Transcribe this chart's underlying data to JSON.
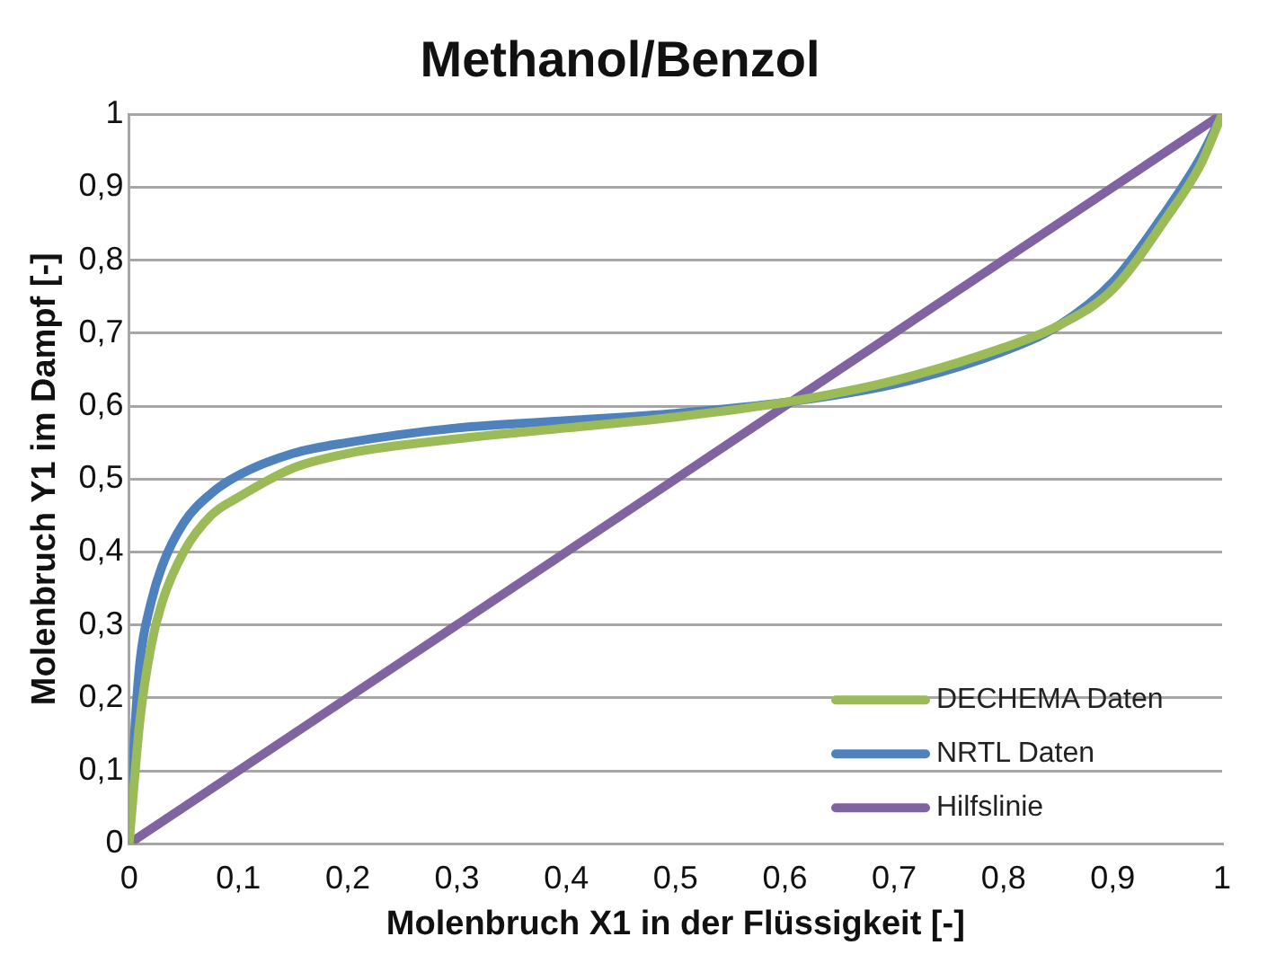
{
  "chart_data": {
    "type": "line",
    "title": "Methanol/Benzol",
    "xlabel": "Molenbruch X1 in der Flüssigkeit [-]",
    "ylabel": "Molenbruch Y1 im Dampf [-]",
    "xlim": [
      0,
      1
    ],
    "xticks": [
      0,
      {
        "value": 0.1,
        "label": "0,1"
      },
      {
        "value": 0.2,
        "label": "0,2"
      },
      {
        "value": 0.3,
        "label": "0,3"
      },
      {
        "value": 0.4,
        "label": "0,4"
      },
      {
        "value": 0.5,
        "label": "0,5"
      },
      {
        "value": 0.6,
        "label": "0,6"
      },
      {
        "value": 0.7,
        "label": "0,7"
      },
      {
        "value": 0.8,
        "label": "0,8"
      },
      {
        "value": 0.9,
        "label": "0,9"
      },
      1
    ],
    "ylim": [
      0,
      1
    ],
    "yticks": [
      0,
      {
        "value": 0.1,
        "label": "0,1"
      },
      {
        "value": 0.2,
        "label": "0,2"
      },
      {
        "value": 0.3,
        "label": "0,3"
      },
      {
        "value": 0.4,
        "label": "0,4"
      },
      {
        "value": 0.5,
        "label": "0,5"
      },
      {
        "value": 0.6,
        "label": "0,6"
      },
      {
        "value": 0.7,
        "label": "0,7"
      },
      {
        "value": 0.8,
        "label": "0,8"
      },
      {
        "value": 0.9,
        "label": "0,9"
      },
      1
    ],
    "grid": "y",
    "legend": "bottom right",
    "marker": "none",
    "line_style": "solid",
    "series": [
      {
        "name": "DECHEMA Daten",
        "color": "#9bbb59",
        "x": [
          0,
          0.01,
          0.02,
          0.03,
          0.05,
          0.075,
          0.1,
          0.15,
          0.2,
          0.3,
          0.4,
          0.5,
          0.6,
          0.7,
          0.8,
          0.85,
          0.9,
          0.95,
          0.98,
          1
        ],
        "values": [
          0,
          0.17,
          0.27,
          0.33,
          0.4,
          0.45,
          0.475,
          0.515,
          0.535,
          0.555,
          0.57,
          0.585,
          0.605,
          0.635,
          0.68,
          0.71,
          0.76,
          0.86,
          0.93,
          1
        ]
      },
      {
        "name": "NRTL Daten",
        "color": "#4f81bd",
        "x": [
          0,
          0.005,
          0.01,
          0.02,
          0.03,
          0.05,
          0.075,
          0.1,
          0.15,
          0.2,
          0.3,
          0.4,
          0.5,
          0.6,
          0.7,
          0.8,
          0.85,
          0.9,
          0.95,
          0.98,
          1
        ],
        "values": [
          0,
          0.15,
          0.25,
          0.33,
          0.38,
          0.44,
          0.48,
          0.505,
          0.535,
          0.55,
          0.57,
          0.58,
          0.59,
          0.605,
          0.63,
          0.675,
          0.71,
          0.77,
          0.87,
          0.94,
          1
        ]
      },
      {
        "name": "Hilfslinie",
        "color": "#8064a2",
        "x": [
          0,
          1
        ],
        "values": [
          0,
          1
        ]
      }
    ]
  }
}
